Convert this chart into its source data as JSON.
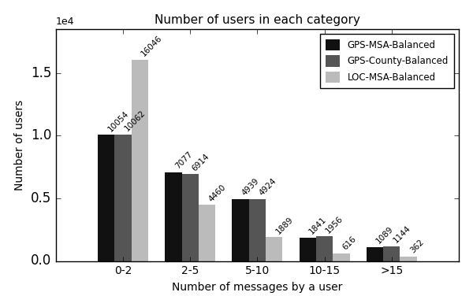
{
  "title": "Number of users in each category",
  "xlabel": "Number of messages by a user",
  "ylabel": "Number of users",
  "categories": [
    "0-2",
    "2-5",
    "5-10",
    "10-15",
    ">15"
  ],
  "series": {
    "GPS-MSA-Balanced": [
      10054,
      7077,
      4939,
      1841,
      1089
    ],
    "GPS-County-Balanced": [
      10062,
      6914,
      4924,
      1956,
      1144
    ],
    "LOC-MSA-Balanced": [
      16046,
      4460,
      1889,
      616,
      362
    ]
  },
  "colors": {
    "GPS-MSA-Balanced": "#111111",
    "GPS-County-Balanced": "#555555",
    "LOC-MSA-Balanced": "#bbbbbb"
  },
  "legend_order": [
    "GPS-MSA-Balanced",
    "GPS-County-Balanced",
    "LOC-MSA-Balanced"
  ],
  "ylim": [
    0,
    18500
  ],
  "bar_width": 0.25,
  "figsize": [
    6.0,
    3.9
  ],
  "dpi": 100,
  "label_fontsize": 7.5,
  "axis_fontsize": 10,
  "title_fontsize": 11
}
